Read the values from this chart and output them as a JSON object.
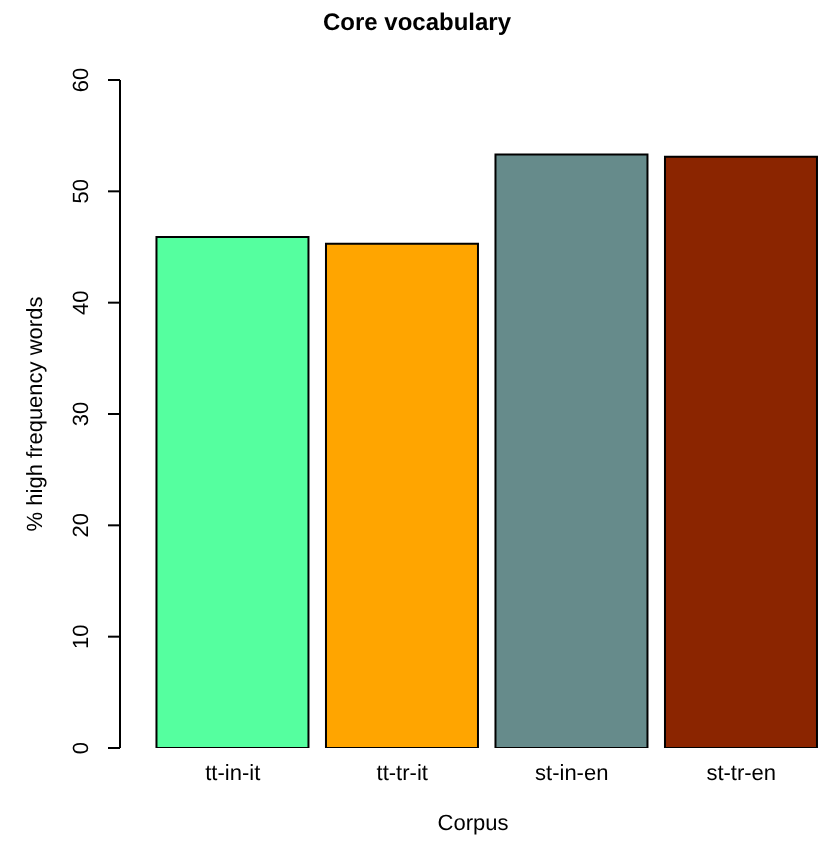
{
  "chart_data": {
    "type": "bar",
    "title": "Core vocabulary",
    "xlabel": "Corpus",
    "ylabel": "% high frequency words",
    "categories": [
      "tt-in-it",
      "tt-tr-it",
      "st-in-en",
      "st-tr-en"
    ],
    "values": [
      45.9,
      45.3,
      53.3,
      53.1
    ],
    "colors": [
      "#55ff9f",
      "#ffa500",
      "#668b8b",
      "#8b2500"
    ],
    "ylim": [
      0,
      60
    ],
    "yticks": [
      0,
      10,
      20,
      30,
      40,
      50,
      60
    ],
    "grid": false
  }
}
